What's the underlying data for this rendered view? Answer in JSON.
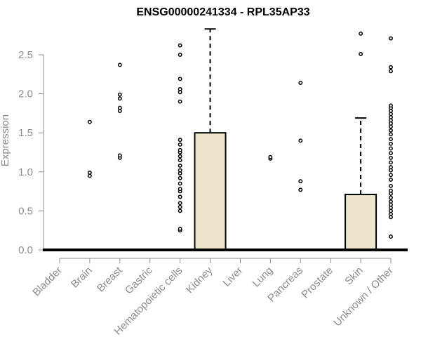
{
  "chart_data": {
    "type": "boxplot",
    "title": "ENSG00000241334 - RPL35AP33",
    "ylabel": "Expression",
    "ylim": [
      0,
      2.75
    ],
    "yticks": [
      "0.0",
      "0.5",
      "1.0",
      "1.5",
      "2.0",
      "2.5"
    ],
    "box_color": "#ece6cc",
    "categories": [
      "Bladder",
      "Brain",
      "Breast",
      "Gastric",
      "Hematopoietic cells",
      "Kidney",
      "Liver",
      "Lung",
      "Pancreas",
      "Prostate",
      "Skin",
      "Unknown / Other"
    ],
    "boxes": [
      {
        "q1": 0,
        "median": 0,
        "q3": 0,
        "whisker_low": 0,
        "whisker_high": 0,
        "outliers": []
      },
      {
        "q1": 0,
        "median": 0,
        "q3": 0,
        "whisker_low": 0,
        "whisker_high": 0,
        "outliers": [
          0.95,
          0.99,
          1.64
        ]
      },
      {
        "q1": 0,
        "median": 0,
        "q3": 0,
        "whisker_low": 0,
        "whisker_high": 0,
        "outliers": [
          1.18,
          1.21,
          1.78,
          1.82,
          1.94,
          1.99,
          2.37
        ]
      },
      {
        "q1": 0,
        "median": 0,
        "q3": 0,
        "whisker_low": 0,
        "whisker_high": 0,
        "outliers": []
      },
      {
        "q1": 0,
        "median": 0,
        "q3": 0,
        "whisker_low": 0,
        "whisker_high": 0,
        "outliers": [
          0.25,
          0.27,
          0.5,
          0.55,
          0.6,
          0.68,
          0.75,
          0.78,
          0.85,
          0.92,
          0.98,
          1.02,
          1.08,
          1.15,
          1.2,
          1.25,
          1.28,
          1.35,
          1.41,
          1.9,
          2.02,
          2.06,
          2.19,
          2.5,
          2.62
        ]
      },
      {
        "q1": 0,
        "median": 0,
        "q3": 1.5,
        "whisker_low": 0,
        "whisker_high": 2.83,
        "outliers": []
      },
      {
        "q1": 0,
        "median": 0,
        "q3": 0,
        "whisker_low": 0,
        "whisker_high": 0,
        "outliers": []
      },
      {
        "q1": 0,
        "median": 0,
        "q3": 0,
        "whisker_low": 0,
        "whisker_high": 0,
        "outliers": [
          1.17,
          1.19
        ]
      },
      {
        "q1": 0,
        "median": 0,
        "q3": 0,
        "whisker_low": 0,
        "whisker_high": 0,
        "outliers": [
          0.77,
          0.88,
          1.4,
          2.14
        ]
      },
      {
        "q1": 0,
        "median": 0,
        "q3": 0,
        "whisker_low": 0,
        "whisker_high": 0,
        "outliers": []
      },
      {
        "q1": 0,
        "median": 0,
        "q3": 0.71,
        "whisker_low": 0,
        "whisker_high": 1.69,
        "outliers": [
          2.51,
          2.77
        ]
      },
      {
        "q1": 0,
        "median": 0,
        "q3": 0,
        "whisker_low": 0,
        "whisker_high": 0,
        "outliers": [
          0.17,
          0.42,
          0.46,
          0.5,
          0.54,
          0.58,
          0.62,
          0.67,
          0.72,
          0.76,
          0.82,
          0.9,
          0.96,
          1.02,
          1.06,
          1.12,
          1.18,
          1.24,
          1.3,
          1.36,
          1.42,
          1.48,
          1.53,
          1.58,
          1.62,
          1.66,
          1.7,
          1.74,
          1.78,
          1.82,
          1.85,
          2.29,
          2.34,
          2.71
        ]
      }
    ]
  }
}
